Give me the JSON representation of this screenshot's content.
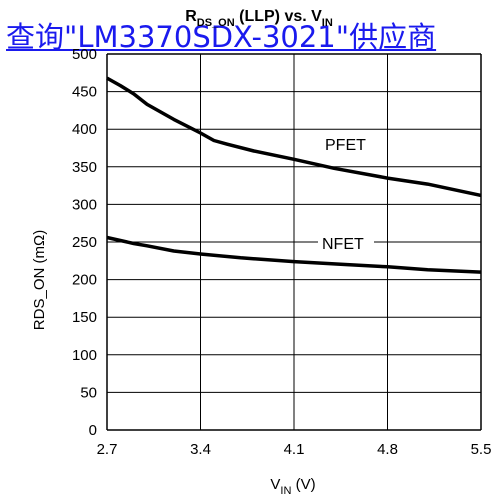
{
  "link": {
    "text": "查询\"LM3370SDX-3021\"供应商"
  },
  "chart_data": {
    "type": "line",
    "title_main": "R",
    "title_sub": "DS_ON",
    "title_mid": " (LLP) vs. V",
    "title_sub2": "IN",
    "ylabel": "RDS_ON (mΩ)",
    "xlabel_main": "V",
    "xlabel_sub": "IN",
    "xlabel_unit": " (V)",
    "xlim": [
      2.7,
      5.5
    ],
    "ylim": [
      0,
      500
    ],
    "xticks": [
      2.7,
      3.4,
      4.1,
      4.8,
      5.5
    ],
    "xtick_labels": [
      "2.7",
      "3.4",
      "4.1",
      "4.8",
      "5.5"
    ],
    "yticks": [
      0,
      50,
      100,
      150,
      200,
      250,
      300,
      350,
      400,
      450,
      500
    ],
    "ytick_labels": [
      "0",
      "50",
      "100",
      "150",
      "200",
      "250",
      "300",
      "350",
      "400",
      "450",
      "500"
    ],
    "grid": true,
    "series": [
      {
        "name": "PFET",
        "x": [
          2.7,
          2.8,
          2.9,
          3.0,
          3.2,
          3.4,
          3.5,
          3.6,
          3.8,
          4.1,
          4.4,
          4.8,
          5.1,
          5.5
        ],
        "y": [
          468,
          458,
          447,
          433,
          413,
          395,
          385,
          380,
          371,
          360,
          348,
          335,
          327,
          312
        ]
      },
      {
        "name": "NFET",
        "x": [
          2.7,
          2.8,
          2.9,
          3.0,
          3.2,
          3.4,
          3.7,
          4.1,
          4.5,
          4.8,
          5.1,
          5.5
        ],
        "y": [
          256,
          252,
          248,
          245,
          238,
          234,
          229,
          224,
          220,
          217,
          213,
          210
        ]
      }
    ],
    "line_color": "#000000",
    "grid_color": "#000000"
  }
}
